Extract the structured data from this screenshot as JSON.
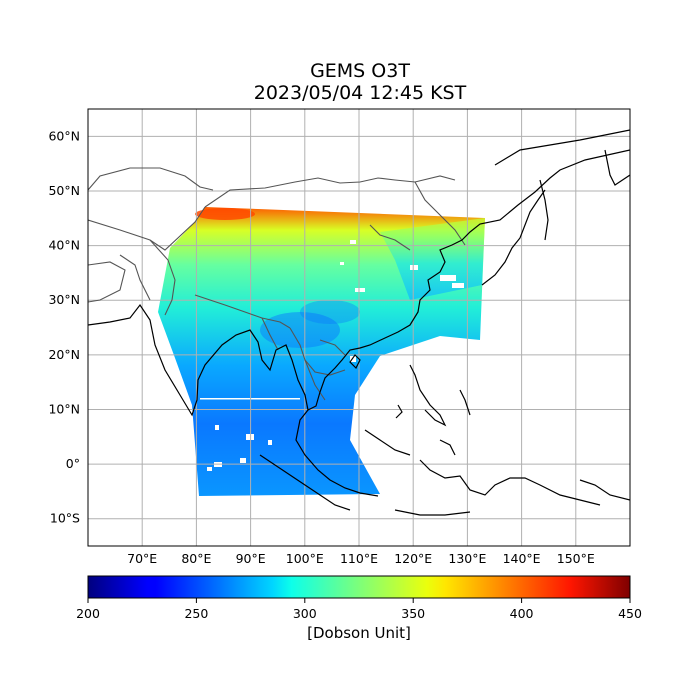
{
  "title": {
    "line1": "GEMS O3T",
    "line2": "2023/05/04 12:45 KST"
  },
  "map": {
    "extent": {
      "lon_min": 60,
      "lon_max": 160,
      "lat_min": -15,
      "lat_max": 65
    },
    "grid": true,
    "lat_ticks": [
      {
        "value": 60,
        "label": "60°N"
      },
      {
        "value": 50,
        "label": "50°N"
      },
      {
        "value": 40,
        "label": "40°N"
      },
      {
        "value": 30,
        "label": "30°N"
      },
      {
        "value": 20,
        "label": "20°N"
      },
      {
        "value": 10,
        "label": "10°N"
      },
      {
        "value": 0,
        "label": "0°"
      },
      {
        "value": -10,
        "label": "10°S"
      }
    ],
    "lon_ticks": [
      {
        "value": 70,
        "label": "70°E"
      },
      {
        "value": 80,
        "label": "80°E"
      },
      {
        "value": 90,
        "label": "90°E"
      },
      {
        "value": 100,
        "label": "100°E"
      },
      {
        "value": 110,
        "label": "110°E"
      },
      {
        "value": 120,
        "label": "120°E"
      },
      {
        "value": 130,
        "label": "130°E"
      },
      {
        "value": 140,
        "label": "140°E"
      },
      {
        "value": 150,
        "label": "150°E"
      }
    ]
  },
  "colorbar": {
    "min": 200,
    "max": 450,
    "colormap": "jet",
    "ticks": [
      {
        "value": 200,
        "label": "200"
      },
      {
        "value": 250,
        "label": "250"
      },
      {
        "value": 300,
        "label": "300"
      },
      {
        "value": 350,
        "label": "350"
      },
      {
        "value": 400,
        "label": "400"
      },
      {
        "value": 450,
        "label": "450"
      }
    ],
    "label": "[Dobson Unit]"
  },
  "colors": {
    "coastline": "#000000",
    "borders": "#555555",
    "grid": "#b0b0b0"
  }
}
